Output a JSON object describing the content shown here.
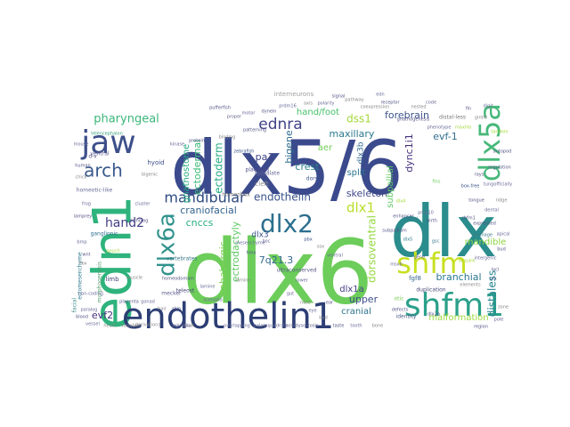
{
  "words": [
    {
      "text": "dlx5/6",
      "color": "#3b4a8c"
    },
    {
      "text": "dlx6",
      "color": "#6ccd5a"
    },
    {
      "text": "dlx",
      "color": "#2a8c8c"
    },
    {
      "text": "edn1",
      "color": "#2eb37c"
    },
    {
      "text": "endothelin1",
      "color": "#2c3e74"
    },
    {
      "text": "shfm",
      "color": "#c8e020"
    },
    {
      "text": "shfm1",
      "color": "#2aa08a"
    },
    {
      "text": "jaw",
      "color": "#3d4f8a"
    },
    {
      "text": "dlx5a",
      "color": "#47b87a"
    },
    {
      "text": "dlx2",
      "color": "#2c6f8e"
    },
    {
      "text": "dlx6a",
      "color": "#31928c"
    },
    {
      "text": "arch",
      "color": "#3a5a8c"
    },
    {
      "text": "mandibular",
      "color": "#2d4a82"
    },
    {
      "text": "ednra",
      "color": "#414487"
    },
    {
      "text": "pharyngeal",
      "color": "#3bb57a"
    },
    {
      "text": "dss1",
      "color": "#a4d93b"
    },
    {
      "text": "evf-1",
      "color": "#2f6e8e"
    },
    {
      "text": "maxillary",
      "color": "#2a788e"
    },
    {
      "text": "forebrain",
      "color": "#3b528b"
    },
    {
      "text": "hand/foot",
      "color": "#44c06a"
    },
    {
      "text": "dync1i1",
      "color": "#46327e"
    },
    {
      "text": "endothelin",
      "color": "#3a538b"
    },
    {
      "text": "dlx1",
      "color": "#b8de29"
    },
    {
      "text": "dlx3b",
      "color": "#31688e"
    },
    {
      "text": "craniofacial",
      "color": "#33638d"
    },
    {
      "text": "hand2",
      "color": "#433e85"
    },
    {
      "text": "cnccs",
      "color": "#29af7f"
    },
    {
      "text": "skeleton",
      "color": "#3f4889"
    },
    {
      "text": "split",
      "color": "#2b758e"
    },
    {
      "text": "crest",
      "color": "#26818e"
    },
    {
      "text": "aer",
      "color": "#6ece58"
    },
    {
      "text": "pa1",
      "color": "#404387"
    },
    {
      "text": "bigene",
      "color": "#2e6e8e"
    },
    {
      "text": "7q21.3",
      "color": "#31688e"
    },
    {
      "text": "dlx3",
      "color": "#3b518b"
    },
    {
      "text": "branchial",
      "color": "#2a778e"
    },
    {
      "text": "mandible",
      "color": "#8fd744"
    },
    {
      "text": "dorsoventral",
      "color": "#95d840"
    },
    {
      "text": "upper",
      "color": "#3e4c8a"
    },
    {
      "text": "cranial",
      "color": "#2c718e"
    },
    {
      "text": "dlx1a",
      "color": "#433d84"
    },
    {
      "text": "malformation",
      "color": "#9dd93b"
    },
    {
      "text": "distaless",
      "color": "#25848e"
    },
    {
      "text": "ectoderm",
      "color": "#25ac82"
    },
    {
      "text": "ectodermal",
      "color": "#3aba76"
    },
    {
      "text": "gnathostome",
      "color": "#27ad81"
    },
    {
      "text": "ectrodactyly",
      "color": "#5cc863"
    },
    {
      "text": "subpallial",
      "color": "#5ec962"
    },
    {
      "text": "evf2",
      "color": "#46307e"
    },
    {
      "text": "gababergic",
      "color": "#7ad151"
    },
    {
      "text": "interneurons",
      "color": "#9e9e9e"
    },
    {
      "text": "hyoid",
      "color": "#3c4f8a"
    },
    {
      "text": "cleft",
      "color": "#8e8e8e"
    },
    {
      "text": "homeobox",
      "color": "#777777"
    },
    {
      "text": "dorsal",
      "color": "#3b528b"
    },
    {
      "text": "placodes",
      "color": "#4a4a8a"
    },
    {
      "text": "ventral",
      "color": "#5f5f8f"
    },
    {
      "text": "distal-less",
      "color": "#7a7a7a"
    },
    {
      "text": "lip/palate",
      "color": "#666699"
    },
    {
      "text": "ganglionic",
      "color": "#2e6e8e"
    },
    {
      "text": "vertebrates",
      "color": "#3a7a8a"
    },
    {
      "text": "teleost",
      "color": "#4a4a7a"
    },
    {
      "text": "meckel",
      "color": "#5a5a8a"
    },
    {
      "text": "limb",
      "color": "#444477"
    },
    {
      "text": "ultraconserved",
      "color": "#5a5a8a"
    },
    {
      "text": "duplication",
      "color": "#4a4a7a"
    },
    {
      "text": "identity",
      "color": "#4b5a8a"
    },
    {
      "text": "fgf8",
      "color": "#33638d"
    },
    {
      "text": "otic",
      "color": "#7ad151"
    },
    {
      "text": "homeotic-like",
      "color": "#6a6a9a"
    },
    {
      "text": "ectomesenchyme",
      "color": "#2a788e"
    },
    {
      "text": "morphogenesis",
      "color": "#55a070"
    },
    {
      "text": "facial",
      "color": "#3a8a8a"
    },
    {
      "text": "telencephalon",
      "color": "#3aa07a"
    },
    {
      "text": "d-v",
      "color": "#555588"
    },
    {
      "text": "overlapping",
      "color": "#6a6a9a"
    },
    {
      "text": "palatoquadrate",
      "color": "#6a6a9a"
    },
    {
      "text": "acrodysostosis",
      "color": "#5a5a8a"
    },
    {
      "text": "derivations",
      "color": "#888888"
    },
    {
      "text": "skull",
      "color": "#888888"
    },
    {
      "text": "zebrafish",
      "color": "#3a538b"
    },
    {
      "text": "mesenchyme",
      "color": "#6a6a9a"
    },
    {
      "text": "proper",
      "color": "#6a6a8a"
    },
    {
      "text": "pufferfish",
      "color": "#555588"
    },
    {
      "text": "maxilla",
      "color": "#a4d93b"
    },
    {
      "text": "rays",
      "color": "#555588"
    },
    {
      "text": "fins",
      "color": "#6ccd5a"
    },
    {
      "text": "birth",
      "color": "#555588"
    },
    {
      "text": "box-free",
      "color": "#3a538b"
    },
    {
      "text": "tungofficially",
      "color": "#6a6a9a"
    },
    {
      "text": "dlx2a",
      "color": "#555588"
    },
    {
      "text": "neural",
      "color": "#3a7a8a"
    },
    {
      "text": "gene",
      "color": "#6a6a9a"
    },
    {
      "text": "pmg10",
      "color": "#6a6a9a"
    },
    {
      "text": "dlx5",
      "color": "#2a788e"
    },
    {
      "text": "msxb",
      "color": "#6a6a9a"
    },
    {
      "text": "patterning",
      "color": "#555588"
    },
    {
      "text": "prdm16",
      "color": "#6a6a9a"
    },
    {
      "text": "dlx4",
      "color": "#a4d93b"
    },
    {
      "text": "gsc",
      "color": "#3a7a8a"
    },
    {
      "text": "hmx",
      "color": "#555588"
    },
    {
      "text": "boc",
      "color": "#6a6a9a"
    },
    {
      "text": "pbx",
      "color": "#3a538b"
    },
    {
      "text": "lamine",
      "color": "#6a6a9a"
    },
    {
      "text": "scenario",
      "color": "#6a6a9a"
    },
    {
      "text": "non-coding",
      "color": "#6a6a9a"
    },
    {
      "text": "pouch",
      "color": "#a4d93b"
    },
    {
      "text": "eglossia",
      "color": "#6a6a9a"
    },
    {
      "text": "variable",
      "color": "#888888"
    },
    {
      "text": "shfm1",
      "color": "#555588"
    },
    {
      "text": "tongue",
      "color": "#555588"
    },
    {
      "text": "acquire",
      "color": "#a4d93b"
    },
    {
      "text": "defects",
      "color": "#555588"
    },
    {
      "text": "lamine",
      "color": "#888888"
    },
    {
      "text": "homeodomain",
      "color": "#555588"
    },
    {
      "text": "lower",
      "color": "#6a6a9a"
    },
    {
      "text": "subpallium",
      "color": "#555588"
    },
    {
      "text": "sox",
      "color": "#888888"
    },
    {
      "text": "ventral",
      "color": "#6a6a9a"
    },
    {
      "text": "enhancer",
      "color": "#555588"
    },
    {
      "text": "gnathogenesis",
      "color": "#555588"
    },
    {
      "text": "phenotype",
      "color": "#6a6a9a"
    },
    {
      "text": "coexpression",
      "color": "#888888"
    },
    {
      "text": "tandem",
      "color": "#a4d93b"
    },
    {
      "text": "regulation",
      "color": "#555588"
    },
    {
      "text": "dental",
      "color": "#6a6a9a"
    },
    {
      "text": "expressed",
      "color": "#555588"
    },
    {
      "text": "cartilage",
      "color": "#3a7a8a"
    },
    {
      "text": "elements",
      "color": "#888888"
    },
    {
      "text": "intergenic",
      "color": "#6a6a9a"
    },
    {
      "text": "loci",
      "color": "#555588"
    },
    {
      "text": "alx",
      "color": "#3a538b"
    },
    {
      "text": "mouse",
      "color": "#6a6a9a"
    },
    {
      "text": "human",
      "color": "#555588"
    },
    {
      "text": "chick",
      "color": "#888888"
    },
    {
      "text": "frog",
      "color": "#6a6a9a"
    },
    {
      "text": "lamprey",
      "color": "#555588"
    },
    {
      "text": "bmp",
      "color": "#6a6a9a"
    },
    {
      "text": "wnt",
      "color": "#555588"
    },
    {
      "text": "hox",
      "color": "#888888"
    },
    {
      "text": "paralog",
      "color": "#6a6a9a"
    },
    {
      "text": "ortholog",
      "color": "#555588"
    },
    {
      "text": "cluster",
      "color": "#6a6a9a"
    },
    {
      "text": "bigenic",
      "color": "#888888"
    },
    {
      "text": "kinase",
      "color": "#6a6a9a"
    },
    {
      "text": "protein",
      "color": "#555588"
    },
    {
      "text": "binding",
      "color": "#888888"
    },
    {
      "text": "motor",
      "color": "#6a6a9a"
    },
    {
      "text": "dynein",
      "color": "#555588"
    },
    {
      "text": "axis",
      "color": "#888888"
    },
    {
      "text": "polarity",
      "color": "#6a6a9a"
    },
    {
      "text": "signal",
      "color": "#555588"
    },
    {
      "text": "pathway",
      "color": "#888888"
    },
    {
      "text": "edn",
      "color": "#6a6a9a"
    },
    {
      "text": "receptor",
      "color": "#555588"
    },
    {
      "text": "nested",
      "color": "#888888"
    },
    {
      "text": "code",
      "color": "#6a6a9a"
    },
    {
      "text": "fin",
      "color": "#555588"
    },
    {
      "text": "girdle",
      "color": "#888888"
    },
    {
      "text": "digit",
      "color": "#6a6a9a"
    },
    {
      "text": "autopod",
      "color": "#555588"
    },
    {
      "text": "ridge",
      "color": "#888888"
    },
    {
      "text": "apical",
      "color": "#6a6a9a"
    },
    {
      "text": "bud",
      "color": "#555588"
    },
    {
      "text": "zone",
      "color": "#888888"
    },
    {
      "text": "pole",
      "color": "#6a6a9a"
    },
    {
      "text": "region",
      "color": "#555588"
    },
    {
      "text": "bone",
      "color": "#888888"
    },
    {
      "text": "tooth",
      "color": "#6a6a9a"
    },
    {
      "text": "taste",
      "color": "#555588"
    },
    {
      "text": "bud",
      "color": "#888888"
    },
    {
      "text": "eye",
      "color": "#6a6a9a"
    },
    {
      "text": "ear",
      "color": "#555588"
    },
    {
      "text": "nose",
      "color": "#888888"
    },
    {
      "text": "gut",
      "color": "#6a6a9a"
    },
    {
      "text": "skin",
      "color": "#555588"
    },
    {
      "text": "hair",
      "color": "#888888"
    },
    {
      "text": "gonad",
      "color": "#6a6a9a"
    },
    {
      "text": "placenta",
      "color": "#555588"
    },
    {
      "text": "heart",
      "color": "#888888"
    },
    {
      "text": "vessel",
      "color": "#6a6a9a"
    },
    {
      "text": "blood",
      "color": "#555588"
    },
    {
      "text": "muscle",
      "color": "#888888"
    }
  ]
}
